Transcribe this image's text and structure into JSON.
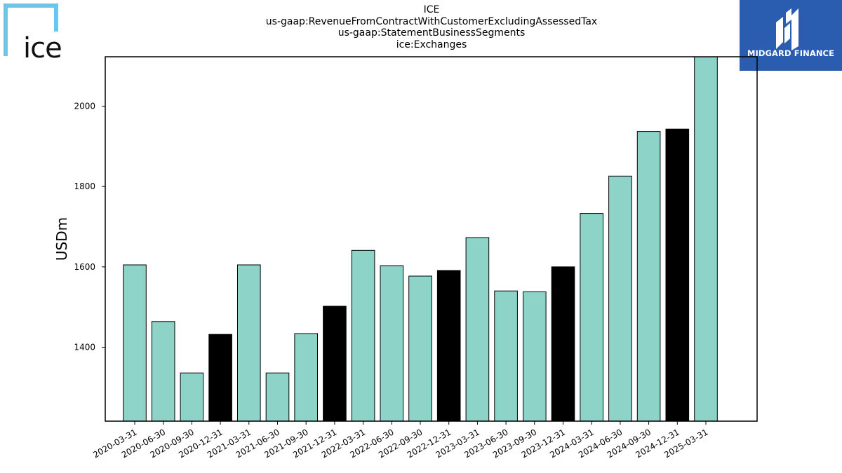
{
  "header": {
    "title_lines": [
      "ICE",
      "us-gaap:RevenueFromContractWithCustomerExcludingAssessedTax",
      "us-gaap:StatementBusinessSegments",
      "ice:Exchanges"
    ]
  },
  "logos": {
    "left_text": "ice",
    "right_text": "MIDGARD FINANCE",
    "left_color": "#6ac6ec",
    "right_bg": "#2a5db0"
  },
  "chart_data": {
    "type": "bar",
    "categories": [
      "2020-03-31",
      "2020-06-30",
      "2020-09-30",
      "2020-12-31",
      "2021-03-31",
      "2021-06-30",
      "2021-09-30",
      "2021-12-31",
      "2022-03-31",
      "2022-06-30",
      "2022-09-30",
      "2022-12-31",
      "2023-03-31",
      "2023-06-30",
      "2023-09-30",
      "2023-12-31",
      "2024-03-31",
      "2024-06-30",
      "2024-09-30",
      "2024-12-31",
      "2025-03-31"
    ],
    "values": [
      1605,
      1464,
      1336,
      1432,
      1605,
      1336,
      1434,
      1502,
      1641,
      1603,
      1577,
      1591,
      1673,
      1540,
      1538,
      1600,
      1733,
      1826,
      1937,
      1943,
      2123
    ],
    "bar_colors": [
      "#8dd3c7",
      "#8dd3c7",
      "#8dd3c7",
      "#000000",
      "#8dd3c7",
      "#8dd3c7",
      "#8dd3c7",
      "#000000",
      "#8dd3c7",
      "#8dd3c7",
      "#8dd3c7",
      "#000000",
      "#8dd3c7",
      "#8dd3c7",
      "#8dd3c7",
      "#000000",
      "#8dd3c7",
      "#8dd3c7",
      "#8dd3c7",
      "#000000",
      "#8dd3c7"
    ],
    "ylabel": "USDm",
    "xlabel": "",
    "ylim": [
      1216,
      2123
    ],
    "yticks": [
      1400,
      1600,
      1800,
      2000
    ],
    "grid": false
  }
}
